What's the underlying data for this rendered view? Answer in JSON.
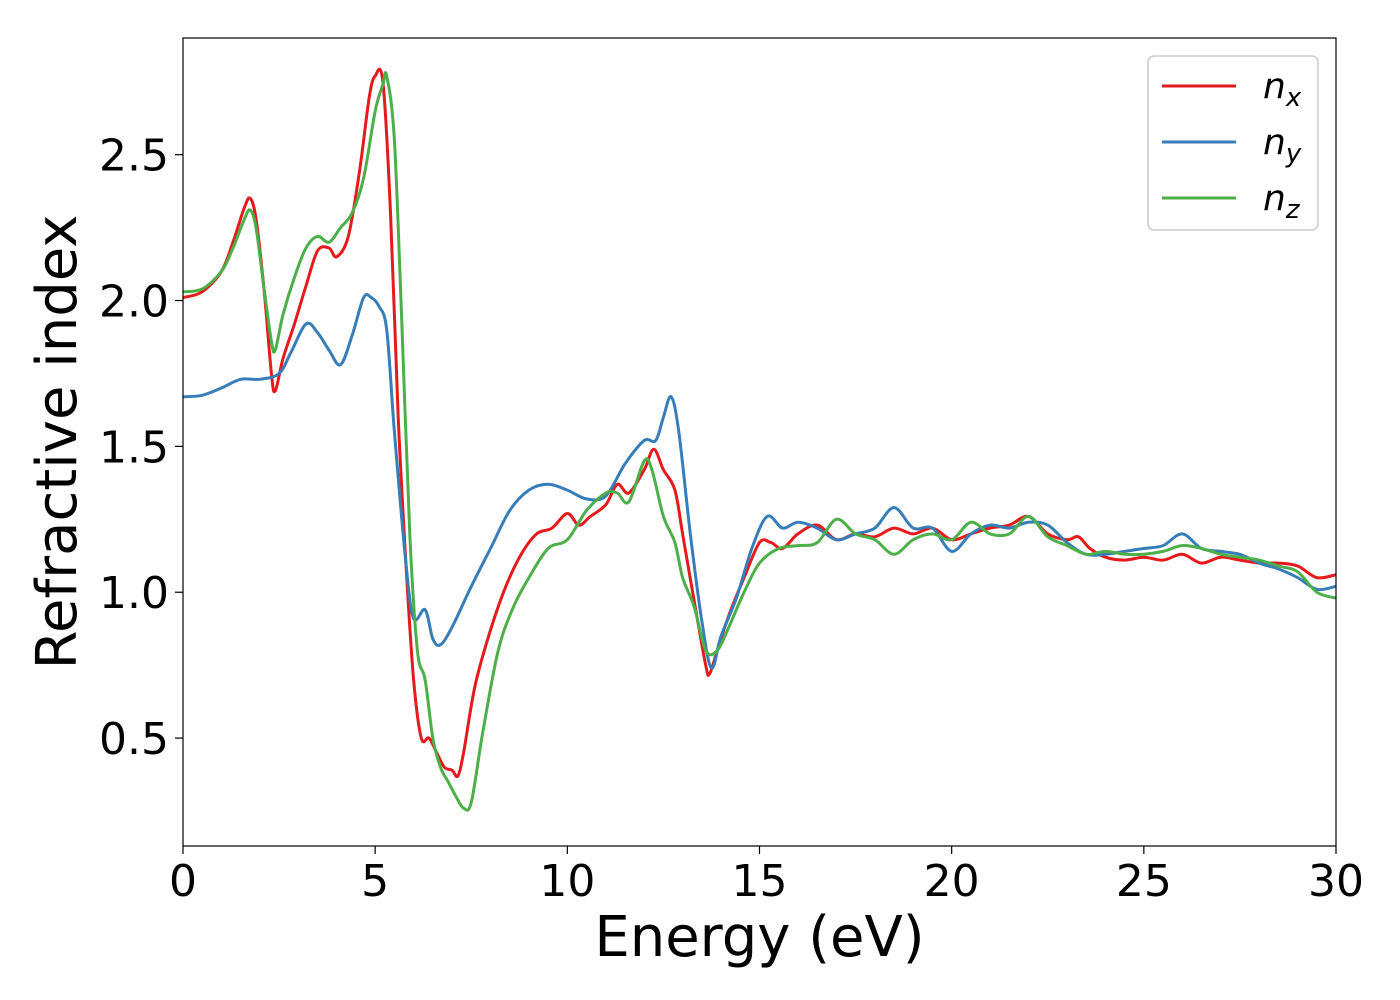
{
  "chart_data": {
    "type": "line",
    "xlabel": "Energy (eV)",
    "ylabel": "Refractive index",
    "xlim": [
      0,
      30
    ],
    "ylim": [
      0.13,
      2.9
    ],
    "x_ticks": [
      0,
      5,
      10,
      15,
      20,
      25,
      30
    ],
    "y_ticks": [
      0.5,
      1.0,
      1.5,
      2.0,
      2.5
    ],
    "x_tick_labels": [
      "0",
      "5",
      "10",
      "15",
      "20",
      "25",
      "30"
    ],
    "y_tick_labels": [
      "0.5",
      "1.0",
      "1.5",
      "2.0",
      "2.5"
    ],
    "grid": false,
    "legend": {
      "position": "top-right"
    },
    "series": [
      {
        "name": "n_x",
        "label_main": "n",
        "label_sub": "x",
        "color": "#e41a1c",
        "points": [
          [
            0,
            2.01
          ],
          [
            0.5,
            2.03
          ],
          [
            1.0,
            2.1
          ],
          [
            1.3,
            2.2
          ],
          [
            1.6,
            2.32
          ],
          [
            1.75,
            2.35
          ],
          [
            1.9,
            2.28
          ],
          [
            2.1,
            2.05
          ],
          [
            2.3,
            1.75
          ],
          [
            2.4,
            1.69
          ],
          [
            2.6,
            1.8
          ],
          [
            2.9,
            1.92
          ],
          [
            3.2,
            2.05
          ],
          [
            3.5,
            2.17
          ],
          [
            3.8,
            2.18
          ],
          [
            4.0,
            2.15
          ],
          [
            4.3,
            2.22
          ],
          [
            4.6,
            2.45
          ],
          [
            4.85,
            2.7
          ],
          [
            5.0,
            2.77
          ],
          [
            5.2,
            2.75
          ],
          [
            5.4,
            2.3
          ],
          [
            5.6,
            1.6
          ],
          [
            5.8,
            1.1
          ],
          [
            6.0,
            0.7
          ],
          [
            6.2,
            0.5
          ],
          [
            6.4,
            0.5
          ],
          [
            6.6,
            0.45
          ],
          [
            6.8,
            0.4
          ],
          [
            7.0,
            0.39
          ],
          [
            7.15,
            0.37
          ],
          [
            7.3,
            0.45
          ],
          [
            7.6,
            0.68
          ],
          [
            8.0,
            0.87
          ],
          [
            8.4,
            1.02
          ],
          [
            8.8,
            1.13
          ],
          [
            9.2,
            1.2
          ],
          [
            9.6,
            1.22
          ],
          [
            10.0,
            1.27
          ],
          [
            10.3,
            1.23
          ],
          [
            10.6,
            1.26
          ],
          [
            11.0,
            1.3
          ],
          [
            11.3,
            1.37
          ],
          [
            11.6,
            1.34
          ],
          [
            12.0,
            1.42
          ],
          [
            12.25,
            1.49
          ],
          [
            12.5,
            1.42
          ],
          [
            12.8,
            1.35
          ],
          [
            13.0,
            1.2
          ],
          [
            13.3,
            0.97
          ],
          [
            13.6,
            0.75
          ],
          [
            13.7,
            0.72
          ],
          [
            13.9,
            0.8
          ],
          [
            14.2,
            0.92
          ],
          [
            14.6,
            1.05
          ],
          [
            15.0,
            1.17
          ],
          [
            15.3,
            1.17
          ],
          [
            15.6,
            1.15
          ],
          [
            16.0,
            1.2
          ],
          [
            16.5,
            1.23
          ],
          [
            17.0,
            1.18
          ],
          [
            17.5,
            1.2
          ],
          [
            18.0,
            1.19
          ],
          [
            18.5,
            1.22
          ],
          [
            19.0,
            1.2
          ],
          [
            19.5,
            1.22
          ],
          [
            20.0,
            1.18
          ],
          [
            20.5,
            1.2
          ],
          [
            21.0,
            1.22
          ],
          [
            21.5,
            1.23
          ],
          [
            22.0,
            1.26
          ],
          [
            22.5,
            1.2
          ],
          [
            23.0,
            1.18
          ],
          [
            23.3,
            1.19
          ],
          [
            23.6,
            1.15
          ],
          [
            24.0,
            1.12
          ],
          [
            24.5,
            1.11
          ],
          [
            25.0,
            1.12
          ],
          [
            25.5,
            1.11
          ],
          [
            26.0,
            1.13
          ],
          [
            26.5,
            1.1
          ],
          [
            27.0,
            1.12
          ],
          [
            27.5,
            1.11
          ],
          [
            28.0,
            1.1
          ],
          [
            28.5,
            1.1
          ],
          [
            29.0,
            1.09
          ],
          [
            29.5,
            1.05
          ],
          [
            30.0,
            1.06
          ]
        ]
      },
      {
        "name": "n_y",
        "label_main": "n",
        "label_sub": "y",
        "color": "#377eb8",
        "points": [
          [
            0,
            1.67
          ],
          [
            0.5,
            1.675
          ],
          [
            1.0,
            1.7
          ],
          [
            1.5,
            1.73
          ],
          [
            2.0,
            1.73
          ],
          [
            2.5,
            1.75
          ],
          [
            2.8,
            1.82
          ],
          [
            3.2,
            1.92
          ],
          [
            3.5,
            1.89
          ],
          [
            3.8,
            1.83
          ],
          [
            4.1,
            1.78
          ],
          [
            4.4,
            1.88
          ],
          [
            4.7,
            2.01
          ],
          [
            4.9,
            2.01
          ],
          [
            5.1,
            1.98
          ],
          [
            5.3,
            1.9
          ],
          [
            5.5,
            1.55
          ],
          [
            5.8,
            1.1
          ],
          [
            6.0,
            0.91
          ],
          [
            6.3,
            0.94
          ],
          [
            6.5,
            0.84
          ],
          [
            6.7,
            0.82
          ],
          [
            7.0,
            0.88
          ],
          [
            7.5,
            1.02
          ],
          [
            8.0,
            1.15
          ],
          [
            8.5,
            1.28
          ],
          [
            9.0,
            1.35
          ],
          [
            9.5,
            1.37
          ],
          [
            10.0,
            1.35
          ],
          [
            10.5,
            1.32
          ],
          [
            11.0,
            1.33
          ],
          [
            11.5,
            1.44
          ],
          [
            12.0,
            1.52
          ],
          [
            12.3,
            1.52
          ],
          [
            12.5,
            1.6
          ],
          [
            12.7,
            1.67
          ],
          [
            12.9,
            1.55
          ],
          [
            13.2,
            1.2
          ],
          [
            13.5,
            0.9
          ],
          [
            13.75,
            0.74
          ],
          [
            14.0,
            0.85
          ],
          [
            14.4,
            0.98
          ],
          [
            14.8,
            1.15
          ],
          [
            15.2,
            1.26
          ],
          [
            15.6,
            1.22
          ],
          [
            16.0,
            1.24
          ],
          [
            16.5,
            1.22
          ],
          [
            17.0,
            1.18
          ],
          [
            17.5,
            1.2
          ],
          [
            18.0,
            1.22
          ],
          [
            18.5,
            1.29
          ],
          [
            19.0,
            1.22
          ],
          [
            19.5,
            1.22
          ],
          [
            20.0,
            1.14
          ],
          [
            20.5,
            1.2
          ],
          [
            21.0,
            1.23
          ],
          [
            21.5,
            1.22
          ],
          [
            22.0,
            1.24
          ],
          [
            22.5,
            1.23
          ],
          [
            23.0,
            1.17
          ],
          [
            23.5,
            1.13
          ],
          [
            24.0,
            1.13
          ],
          [
            24.5,
            1.14
          ],
          [
            25.0,
            1.15
          ],
          [
            25.5,
            1.16
          ],
          [
            26.0,
            1.2
          ],
          [
            26.5,
            1.15
          ],
          [
            27.0,
            1.14
          ],
          [
            27.5,
            1.13
          ],
          [
            28.0,
            1.1
          ],
          [
            28.5,
            1.08
          ],
          [
            29.0,
            1.05
          ],
          [
            29.5,
            1.01
          ],
          [
            30.0,
            1.02
          ]
        ]
      },
      {
        "name": "n_z",
        "label_main": "n",
        "label_sub": "z",
        "color": "#4daf4a",
        "points": [
          [
            0,
            2.03
          ],
          [
            0.5,
            2.04
          ],
          [
            1.0,
            2.1
          ],
          [
            1.3,
            2.18
          ],
          [
            1.6,
            2.28
          ],
          [
            1.75,
            2.31
          ],
          [
            1.9,
            2.25
          ],
          [
            2.1,
            2.05
          ],
          [
            2.3,
            1.86
          ],
          [
            2.4,
            1.83
          ],
          [
            2.6,
            1.95
          ],
          [
            2.9,
            2.08
          ],
          [
            3.2,
            2.18
          ],
          [
            3.5,
            2.22
          ],
          [
            3.8,
            2.2
          ],
          [
            4.1,
            2.25
          ],
          [
            4.4,
            2.3
          ],
          [
            4.7,
            2.42
          ],
          [
            5.0,
            2.65
          ],
          [
            5.2,
            2.74
          ],
          [
            5.3,
            2.77
          ],
          [
            5.5,
            2.55
          ],
          [
            5.7,
            1.9
          ],
          [
            5.9,
            1.2
          ],
          [
            6.1,
            0.8
          ],
          [
            6.3,
            0.7
          ],
          [
            6.5,
            0.5
          ],
          [
            6.7,
            0.4
          ],
          [
            6.9,
            0.35
          ],
          [
            7.1,
            0.3
          ],
          [
            7.3,
            0.26
          ],
          [
            7.5,
            0.28
          ],
          [
            7.8,
            0.52
          ],
          [
            8.2,
            0.8
          ],
          [
            8.6,
            0.95
          ],
          [
            9.0,
            1.05
          ],
          [
            9.5,
            1.15
          ],
          [
            10.0,
            1.18
          ],
          [
            10.5,
            1.28
          ],
          [
            11.0,
            1.34
          ],
          [
            11.3,
            1.34
          ],
          [
            11.6,
            1.31
          ],
          [
            12.0,
            1.45
          ],
          [
            12.2,
            1.42
          ],
          [
            12.5,
            1.26
          ],
          [
            12.8,
            1.17
          ],
          [
            13.0,
            1.05
          ],
          [
            13.3,
            0.95
          ],
          [
            13.6,
            0.8
          ],
          [
            13.9,
            0.8
          ],
          [
            14.2,
            0.88
          ],
          [
            14.6,
            1.0
          ],
          [
            15.0,
            1.1
          ],
          [
            15.5,
            1.15
          ],
          [
            16.0,
            1.16
          ],
          [
            16.5,
            1.17
          ],
          [
            17.0,
            1.25
          ],
          [
            17.5,
            1.2
          ],
          [
            18.0,
            1.18
          ],
          [
            18.5,
            1.13
          ],
          [
            19.0,
            1.18
          ],
          [
            19.5,
            1.2
          ],
          [
            20.0,
            1.18
          ],
          [
            20.5,
            1.24
          ],
          [
            21.0,
            1.2
          ],
          [
            21.5,
            1.2
          ],
          [
            22.0,
            1.26
          ],
          [
            22.5,
            1.19
          ],
          [
            23.0,
            1.16
          ],
          [
            23.5,
            1.13
          ],
          [
            24.0,
            1.14
          ],
          [
            24.5,
            1.13
          ],
          [
            25.0,
            1.13
          ],
          [
            25.5,
            1.14
          ],
          [
            26.0,
            1.16
          ],
          [
            26.5,
            1.15
          ],
          [
            27.0,
            1.13
          ],
          [
            27.5,
            1.12
          ],
          [
            28.0,
            1.11
          ],
          [
            28.5,
            1.09
          ],
          [
            29.0,
            1.07
          ],
          [
            29.5,
            1.0
          ],
          [
            30.0,
            0.98
          ]
        ]
      }
    ]
  }
}
